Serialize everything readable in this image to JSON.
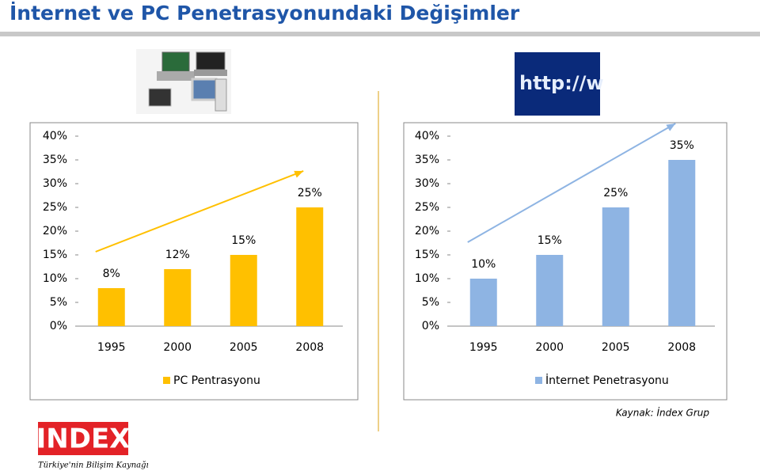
{
  "title": "İnternet ve PC Penetrasyonundaki Değişimler",
  "source": "Kaynak: İndex Grup",
  "logo": {
    "name": "INDEX",
    "tagline": "Türkiye'nin Bilişim Kaynağı"
  },
  "chart_data": [
    {
      "type": "bar",
      "categories": [
        "1995",
        "2000",
        "2005",
        "2008"
      ],
      "series": [
        {
          "name": "PC Pentrasyonu",
          "color": "#ffc000",
          "values": [
            8,
            12,
            15,
            25
          ],
          "value_labels": [
            "8%",
            "12%",
            "15%",
            "25%"
          ]
        }
      ],
      "ylim": [
        0,
        40
      ],
      "yticks": [
        {
          "value": 0,
          "label": "0%"
        },
        {
          "value": 5,
          "label": "5%"
        },
        {
          "value": 10,
          "label": "10%"
        },
        {
          "value": 15,
          "label": "15%"
        },
        {
          "value": 20,
          "label": "20%"
        },
        {
          "value": 25,
          "label": "25%"
        },
        {
          "value": 30,
          "label": "30%"
        },
        {
          "value": 35,
          "label": "35%"
        },
        {
          "value": 40,
          "label": "40%"
        }
      ],
      "grid": false,
      "legend": "bottom"
    },
    {
      "type": "bar",
      "categories": [
        "1995",
        "2000",
        "2005",
        "2008"
      ],
      "series": [
        {
          "name": "İnternet Penetrasyonu",
          "color": "#8eb4e3",
          "values": [
            10,
            15,
            25,
            35
          ],
          "value_labels": [
            "10%",
            "15%",
            "25%",
            "35%"
          ]
        }
      ],
      "ylim": [
        0,
        40
      ],
      "yticks": [
        {
          "value": 0,
          "label": "0%"
        },
        {
          "value": 5,
          "label": "5%"
        },
        {
          "value": 10,
          "label": "10%"
        },
        {
          "value": 15,
          "label": "15%"
        },
        {
          "value": 20,
          "label": "20%"
        },
        {
          "value": 25,
          "label": "25%"
        },
        {
          "value": 30,
          "label": "30%"
        },
        {
          "value": 35,
          "label": "35%"
        },
        {
          "value": 40,
          "label": "40%"
        }
      ],
      "grid": false,
      "legend": "bottom"
    }
  ]
}
